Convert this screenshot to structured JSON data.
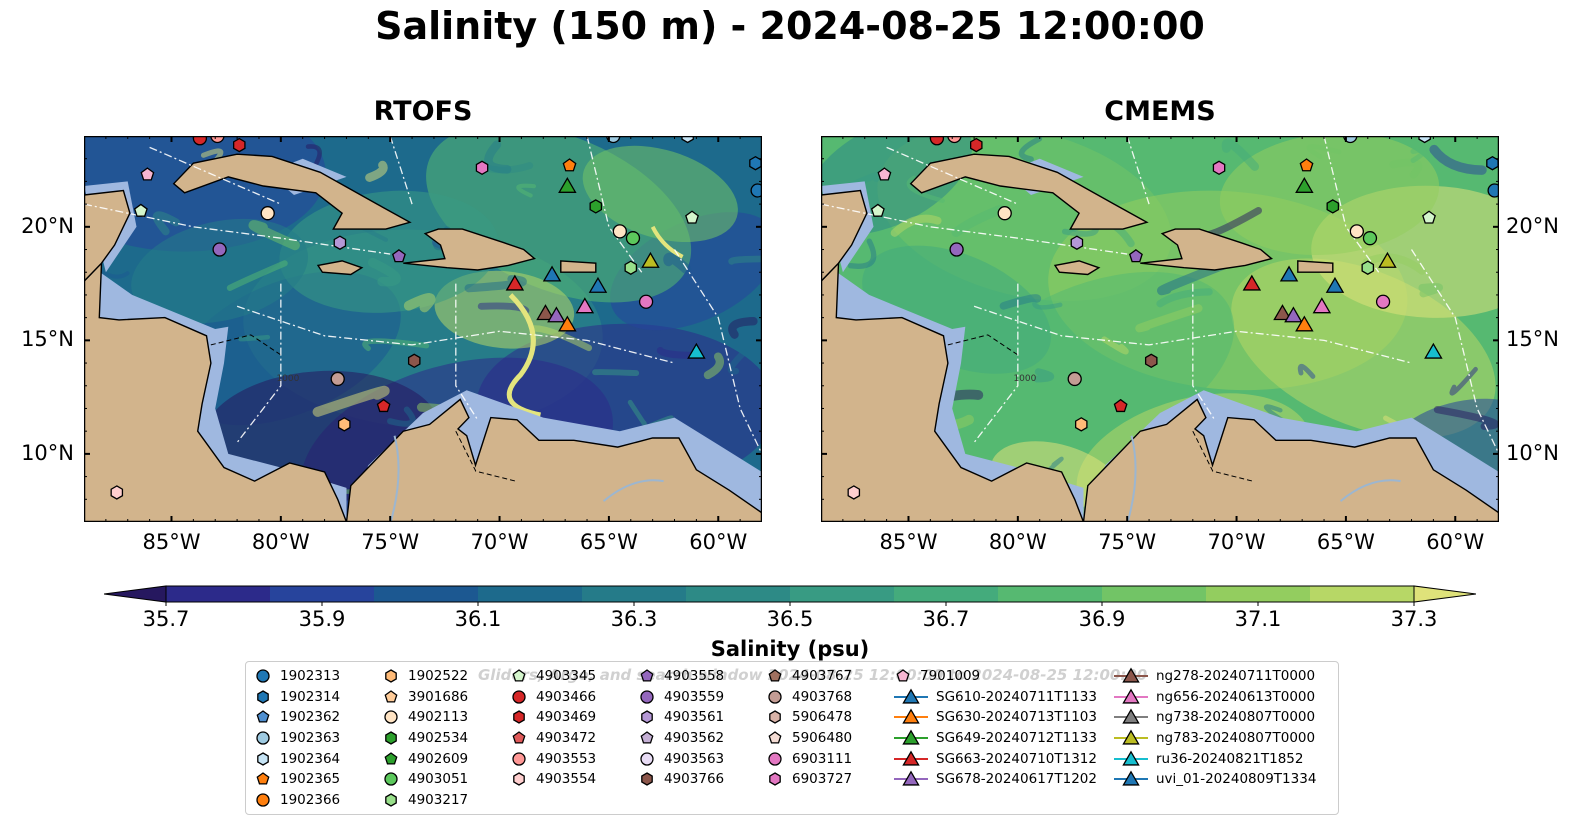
{
  "title": "Salinity (150 m) - 2024-08-25 12:00:00",
  "panels": [
    {
      "id": "rtofs",
      "title": "RTOFS"
    },
    {
      "id": "cmems",
      "title": "CMEMS"
    }
  ],
  "axes": {
    "x_ticks": [
      "85°W",
      "80°W",
      "75°W",
      "70°W",
      "65°W",
      "60°W"
    ],
    "y_ticks": [
      "20°N",
      "15°N",
      "10°N"
    ],
    "lon_range": [
      -89,
      -58
    ],
    "lat_range": [
      7,
      24
    ]
  },
  "map_labels": {
    "isobath": "1000"
  },
  "colorbar": {
    "label": "Salinity (psu)",
    "ticks": [
      "35.7",
      "35.9",
      "36.1",
      "36.3",
      "36.5",
      "36.7",
      "36.9",
      "37.1",
      "37.3"
    ],
    "range": [
      35.7,
      37.3
    ],
    "colors": [
      "#26185f",
      "#2c2a8a",
      "#27449c",
      "#1c5891",
      "#1d6a8c",
      "#257b89",
      "#2d8a86",
      "#389b83",
      "#44ab7c",
      "#56b971",
      "#72c466",
      "#93cd5f",
      "#b7d766",
      "#dfe27a"
    ],
    "extend": "both"
  },
  "colors": {
    "land": "#d2b48c",
    "shelf": "#9fb8e0",
    "river": "#9cb6d0"
  },
  "legend": {
    "watermark": "Gliders, Argo, and search window 2024-08-25 12:00:00 to 2024-08-25 12:00:00",
    "columns": [
      [
        {
          "label": "1902313",
          "marker": "circle",
          "color": "#1f77b4"
        },
        {
          "label": "1902314",
          "marker": "hexagon",
          "color": "#1f77b4"
        },
        {
          "label": "1902362",
          "marker": "pentagon",
          "color": "#4f8fd0"
        },
        {
          "label": "1902363",
          "marker": "circle",
          "color": "#9ecae1"
        },
        {
          "label": "1902364",
          "marker": "hexagon",
          "color": "#c6e4f5"
        },
        {
          "label": "1902365",
          "marker": "pentagon",
          "color": "#ff7f0e"
        },
        {
          "label": "1902366",
          "marker": "circle",
          "color": "#ff7f0e"
        }
      ],
      [
        {
          "label": "1902522",
          "marker": "hexagon",
          "color": "#ffbb78"
        },
        {
          "label": "3901686",
          "marker": "pentagon",
          "color": "#ffcc99"
        },
        {
          "label": "4902113",
          "marker": "circle",
          "color": "#ffe4c4"
        },
        {
          "label": "4902534",
          "marker": "hexagon",
          "color": "#2ca02c"
        },
        {
          "label": "4902609",
          "marker": "pentagon",
          "color": "#2ca02c"
        },
        {
          "label": "4903051",
          "marker": "circle",
          "color": "#5cc85c"
        },
        {
          "label": "4903217",
          "marker": "hexagon",
          "color": "#98df8a"
        }
      ],
      [
        {
          "label": "4903345",
          "marker": "pentagon",
          "color": "#d4f5cc"
        },
        {
          "label": "4903466",
          "marker": "circle",
          "color": "#d62728"
        },
        {
          "label": "4903469",
          "marker": "hexagon",
          "color": "#d62728"
        },
        {
          "label": "4903472",
          "marker": "pentagon",
          "color": "#e05a5a"
        },
        {
          "label": "4903553",
          "marker": "circle",
          "color": "#ff9896"
        },
        {
          "label": "4903554",
          "marker": "hexagon",
          "color": "#ffcfcf"
        }
      ],
      [
        {
          "label": "4903558",
          "marker": "pentagon",
          "color": "#9467bd"
        },
        {
          "label": "4903559",
          "marker": "circle",
          "color": "#9467bd"
        },
        {
          "label": "4903561",
          "marker": "hexagon",
          "color": "#b598d6"
        },
        {
          "label": "4903562",
          "marker": "pentagon",
          "color": "#c5b0d5"
        },
        {
          "label": "4903563",
          "marker": "circle",
          "color": "#e8dcf5"
        },
        {
          "label": "4903766",
          "marker": "hexagon",
          "color": "#8c564b"
        }
      ],
      [
        {
          "label": "4903767",
          "marker": "pentagon",
          "color": "#a0705f"
        },
        {
          "label": "4903768",
          "marker": "circle",
          "color": "#c49c94"
        },
        {
          "label": "5906478",
          "marker": "hexagon",
          "color": "#d9b3a8"
        },
        {
          "label": "5906480",
          "marker": "pentagon",
          "color": "#f5ddd5"
        },
        {
          "label": "6903111",
          "marker": "circle",
          "color": "#e377c2"
        },
        {
          "label": "6903727",
          "marker": "hexagon",
          "color": "#e377c2"
        }
      ],
      [
        {
          "label": "7901009",
          "marker": "pentagon",
          "color": "#f7b6d2"
        },
        {
          "label": "SG610-20240711T1133",
          "marker": "triangle",
          "color": "#1f77b4"
        },
        {
          "label": "SG630-20240713T1103",
          "marker": "triangle",
          "color": "#ff7f0e"
        },
        {
          "label": "SG649-20240712T1133",
          "marker": "triangle",
          "color": "#2ca02c"
        },
        {
          "label": "SG663-20240710T1312",
          "marker": "triangle",
          "color": "#d62728"
        },
        {
          "label": "SG678-20240617T1202",
          "marker": "triangle",
          "color": "#9467bd"
        }
      ],
      [
        {
          "label": "ng278-20240711T0000",
          "marker": "triangle",
          "color": "#8c564b"
        },
        {
          "label": "ng656-20240613T0000",
          "marker": "triangle",
          "color": "#e377c2"
        },
        {
          "label": "ng738-20240807T0000",
          "marker": "triangle",
          "color": "#7f7f7f"
        },
        {
          "label": "ng783-20240807T0000",
          "marker": "triangle",
          "color": "#bcbd22"
        },
        {
          "label": "ru36-20240821T1852",
          "marker": "triangle",
          "color": "#17becf"
        },
        {
          "label": "uvi_01-20240809T1334",
          "marker": "triangle",
          "color": "#1f77b4"
        }
      ]
    ]
  }
}
